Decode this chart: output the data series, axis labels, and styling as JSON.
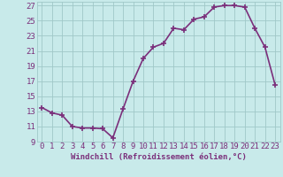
{
  "x": [
    0,
    1,
    2,
    3,
    4,
    5,
    6,
    7,
    8,
    9,
    10,
    11,
    12,
    13,
    14,
    15,
    16,
    17,
    18,
    19,
    20,
    21,
    22,
    23
  ],
  "y": [
    13.5,
    12.8,
    12.5,
    11.0,
    10.8,
    10.8,
    10.7,
    9.5,
    13.3,
    17.0,
    20.0,
    21.5,
    22.0,
    24.0,
    23.8,
    25.2,
    25.5,
    26.8,
    27.0,
    27.0,
    26.8,
    24.0,
    21.5,
    16.5
  ],
  "line_color": "#7b2f7b",
  "marker": "+",
  "marker_size": 4,
  "marker_lw": 1.2,
  "bg_color": "#c8eaea",
  "grid_color": "#a0c8c8",
  "xlabel": "Windchill (Refroidissement éolien,°C)",
  "xlim": [
    -0.5,
    23.5
  ],
  "ylim": [
    9,
    27.5
  ],
  "yticks": [
    9,
    11,
    13,
    15,
    17,
    19,
    21,
    23,
    25,
    27
  ],
  "xticks": [
    0,
    1,
    2,
    3,
    4,
    5,
    6,
    7,
    8,
    9,
    10,
    11,
    12,
    13,
    14,
    15,
    16,
    17,
    18,
    19,
    20,
    21,
    22,
    23
  ],
  "line_width": 1.2,
  "xlabel_fontsize": 6.5,
  "tick_fontsize": 6.5,
  "text_color": "#7b2f7b"
}
